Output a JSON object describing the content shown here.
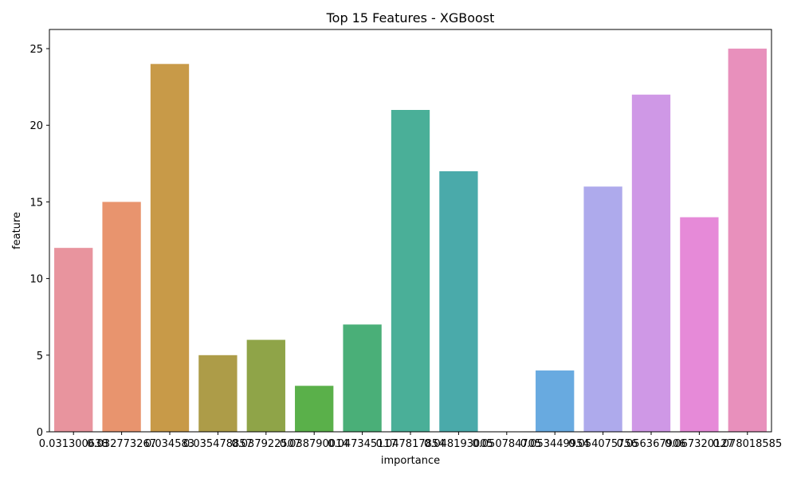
{
  "chart_data": {
    "type": "bar",
    "title": "Top 15 Features - XGBoost",
    "xlabel": "importance",
    "ylabel": "feature",
    "categories": [
      "0.031300638",
      "0.032773267",
      "0.034583",
      "0.035478857",
      "0.037922507",
      "0.038790014",
      "0.047345117",
      "0.047817854",
      "0.048193005",
      "0.050784705",
      "0.053449954",
      "0.054075756",
      "0.056367906",
      "0.067320127",
      "0.078018585"
    ],
    "values": [
      12,
      15,
      24,
      5,
      6,
      3,
      7,
      21,
      17,
      0,
      4,
      16,
      22,
      14,
      25
    ],
    "colors": [
      "#e8949e",
      "#e8946e",
      "#c89a48",
      "#ad9c48",
      "#8fa448",
      "#5ab04a",
      "#4aaf78",
      "#4aaf98",
      "#4aaaaa",
      "#4aa8be",
      "#68aae0",
      "#aeaaec",
      "#cf98e6",
      "#e68ad8",
      "#e890bc"
    ],
    "yticks": [
      0,
      5,
      10,
      15,
      20,
      25
    ],
    "ylim": [
      0,
      26.25
    ],
    "grid": false,
    "legend": "none"
  }
}
